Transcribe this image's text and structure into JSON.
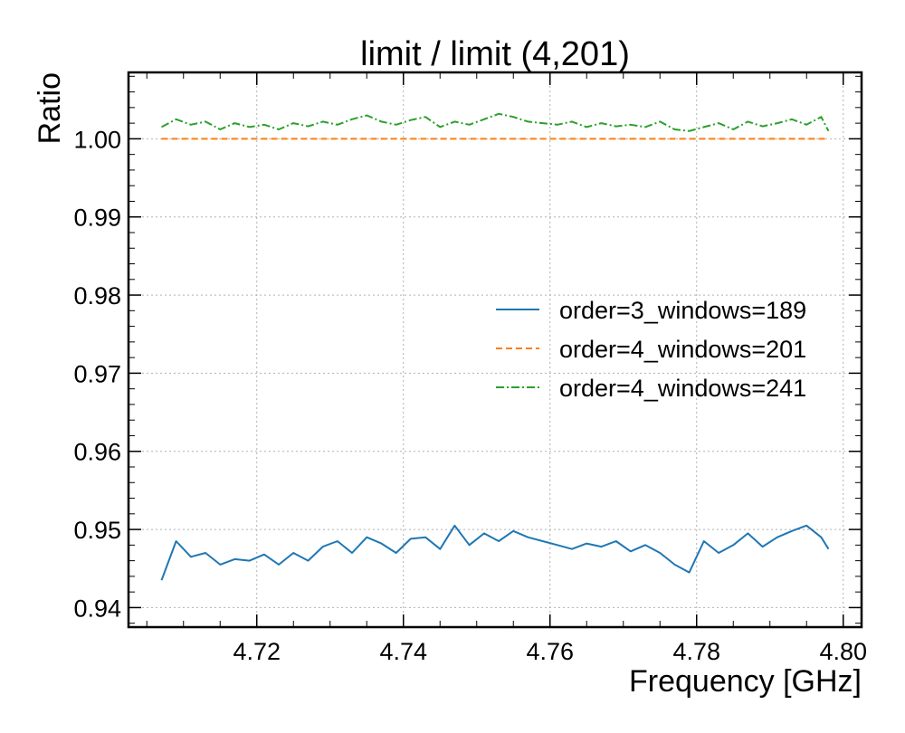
{
  "chart_data": {
    "type": "line",
    "title": "limit / limit (4,201)",
    "xlabel": "Frequency [GHz]",
    "ylabel": "Ratio",
    "xlim": [
      4.7025,
      4.8025
    ],
    "ylim": [
      0.9375,
      1.0085
    ],
    "x_range": [
      4.707,
      4.798
    ],
    "xticks": [
      4.72,
      4.74,
      4.76,
      4.78,
      4.8
    ],
    "xtick_labels": [
      "4.72",
      "4.74",
      "4.76",
      "4.78",
      "4.80"
    ],
    "yticks": [
      0.94,
      0.95,
      0.96,
      0.97,
      0.98,
      0.99,
      1.0
    ],
    "ytick_labels": [
      "0.94",
      "0.95",
      "0.96",
      "0.97",
      "0.98",
      "0.99",
      "1.00"
    ],
    "grid": true,
    "legend_position": "center-right",
    "series": [
      {
        "name": "order=3_windows=189",
        "color": "#1f77b4",
        "style": "solid",
        "x": [
          4.707,
          4.709,
          4.711,
          4.713,
          4.715,
          4.717,
          4.719,
          4.721,
          4.723,
          4.725,
          4.727,
          4.729,
          4.731,
          4.733,
          4.735,
          4.737,
          4.739,
          4.741,
          4.743,
          4.745,
          4.747,
          4.749,
          4.751,
          4.753,
          4.755,
          4.757,
          4.759,
          4.761,
          4.763,
          4.765,
          4.767,
          4.769,
          4.771,
          4.773,
          4.775,
          4.777,
          4.779,
          4.781,
          4.783,
          4.785,
          4.787,
          4.789,
          4.791,
          4.793,
          4.795,
          4.797,
          4.798
        ],
        "y": [
          0.9435,
          0.9485,
          0.9465,
          0.947,
          0.9455,
          0.9462,
          0.946,
          0.9468,
          0.9455,
          0.947,
          0.946,
          0.9478,
          0.9485,
          0.947,
          0.949,
          0.9482,
          0.947,
          0.9488,
          0.949,
          0.9475,
          0.9505,
          0.948,
          0.9495,
          0.9485,
          0.9498,
          0.949,
          0.9485,
          0.948,
          0.9475,
          0.9482,
          0.9478,
          0.9485,
          0.9472,
          0.948,
          0.947,
          0.9455,
          0.9445,
          0.9485,
          0.947,
          0.948,
          0.9495,
          0.9478,
          0.949,
          0.9498,
          0.9505,
          0.949,
          0.9475
        ]
      },
      {
        "name": "order=4_windows=201",
        "color": "#ff7f0e",
        "style": "dashed",
        "x": [
          4.707,
          4.798
        ],
        "y": [
          1.0,
          1.0
        ]
      },
      {
        "name": "order=4_windows=241",
        "color": "#2ca02c",
        "style": "dashdot",
        "x": [
          4.707,
          4.709,
          4.711,
          4.713,
          4.715,
          4.717,
          4.719,
          4.721,
          4.723,
          4.725,
          4.727,
          4.729,
          4.731,
          4.733,
          4.735,
          4.737,
          4.739,
          4.741,
          4.743,
          4.745,
          4.747,
          4.749,
          4.751,
          4.753,
          4.755,
          4.757,
          4.759,
          4.761,
          4.763,
          4.765,
          4.767,
          4.769,
          4.771,
          4.773,
          4.775,
          4.777,
          4.779,
          4.781,
          4.783,
          4.785,
          4.787,
          4.789,
          4.791,
          4.793,
          4.795,
          4.797,
          4.798
        ],
        "y": [
          1.0015,
          1.0025,
          1.0018,
          1.0022,
          1.0012,
          1.002,
          1.0015,
          1.0018,
          1.0012,
          1.002,
          1.0016,
          1.0022,
          1.0018,
          1.0025,
          1.003,
          1.0022,
          1.0018,
          1.0024,
          1.0028,
          1.0015,
          1.0022,
          1.0018,
          1.0025,
          1.0032,
          1.0028,
          1.0022,
          1.002,
          1.0018,
          1.0022,
          1.0015,
          1.002,
          1.0016,
          1.0018,
          1.0015,
          1.0022,
          1.0012,
          1.001,
          1.0015,
          1.002,
          1.0012,
          1.0022,
          1.0016,
          1.002,
          1.0025,
          1.0018,
          1.0028,
          1.001
        ]
      }
    ]
  }
}
